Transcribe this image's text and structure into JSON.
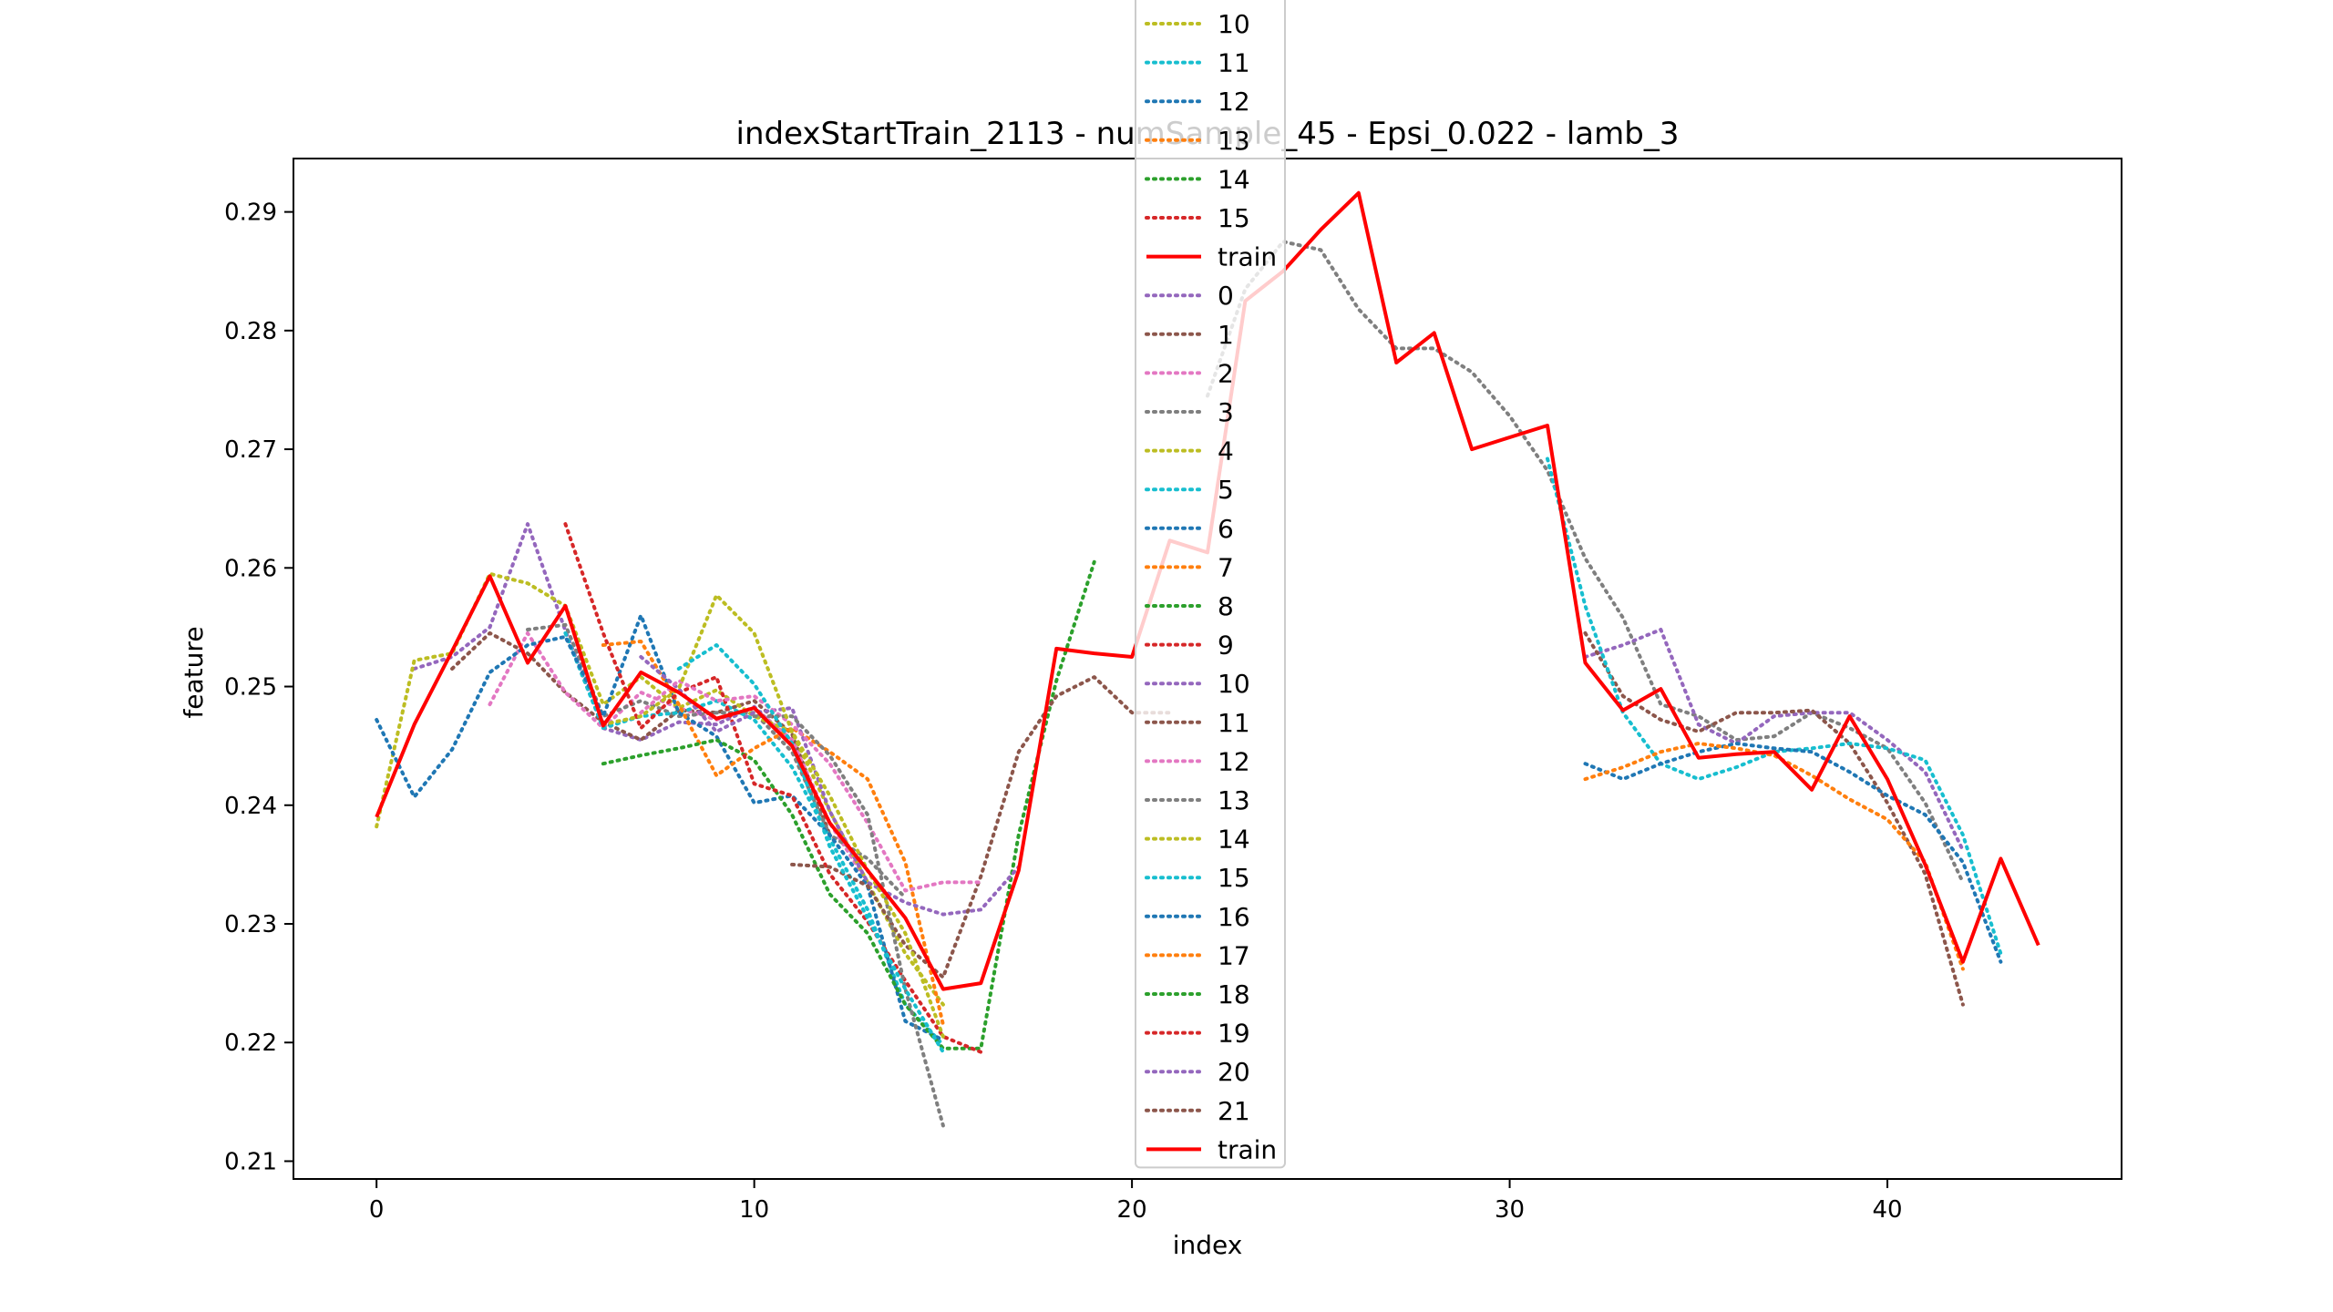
{
  "chart_data": {
    "type": "line",
    "title": "indexStartTrain_2113 - numSample_45 - Epsi_0.022 - lamb_3",
    "xlabel": "index",
    "ylabel": "feature",
    "xlim": [
      -2.2,
      46.2
    ],
    "ylim": [
      0.2085,
      0.2945
    ],
    "x_ticks": [
      0,
      10,
      20,
      30,
      40
    ],
    "y_ticks": [
      0.21,
      0.22,
      0.23,
      0.24,
      0.25,
      0.26,
      0.27,
      0.28,
      0.29
    ],
    "x_tick_labels": [
      "0",
      "10",
      "20",
      "30",
      "40"
    ],
    "y_tick_labels": [
      "0.21",
      "0.22",
      "0.23",
      "0.24",
      "0.25",
      "0.26",
      "0.27",
      "0.28",
      "0.29"
    ],
    "grid": false,
    "legend_placement": "upper-center",
    "legend_entries": [
      {
        "label": "10",
        "color": "#bcbd22",
        "style": "dotted"
      },
      {
        "label": "11",
        "color": "#17becf",
        "style": "dotted"
      },
      {
        "label": "12",
        "color": "#1f77b4",
        "style": "dotted"
      },
      {
        "label": "13",
        "color": "#ff7f0e",
        "style": "dotted"
      },
      {
        "label": "14",
        "color": "#2ca02c",
        "style": "dotted"
      },
      {
        "label": "15",
        "color": "#d62728",
        "style": "dotted"
      },
      {
        "label": "train",
        "color": "#ff0000",
        "style": "solid"
      },
      {
        "label": "0",
        "color": "#9467bd",
        "style": "dotted"
      },
      {
        "label": "1",
        "color": "#8c564b",
        "style": "dotted"
      },
      {
        "label": "2",
        "color": "#e377c2",
        "style": "dotted"
      },
      {
        "label": "3",
        "color": "#7f7f7f",
        "style": "dotted"
      },
      {
        "label": "4",
        "color": "#bcbd22",
        "style": "dotted"
      },
      {
        "label": "5",
        "color": "#17becf",
        "style": "dotted"
      },
      {
        "label": "6",
        "color": "#1f77b4",
        "style": "dotted"
      },
      {
        "label": "7",
        "color": "#ff7f0e",
        "style": "dotted"
      },
      {
        "label": "8",
        "color": "#2ca02c",
        "style": "dotted"
      },
      {
        "label": "9",
        "color": "#d62728",
        "style": "dotted"
      },
      {
        "label": "10",
        "color": "#9467bd",
        "style": "dotted"
      },
      {
        "label": "11",
        "color": "#8c564b",
        "style": "dotted"
      },
      {
        "label": "12",
        "color": "#e377c2",
        "style": "dotted"
      },
      {
        "label": "13",
        "color": "#7f7f7f",
        "style": "dotted"
      },
      {
        "label": "14",
        "color": "#bcbd22",
        "style": "dotted"
      },
      {
        "label": "15",
        "color": "#17becf",
        "style": "dotted"
      },
      {
        "label": "16",
        "color": "#1f77b4",
        "style": "dotted"
      },
      {
        "label": "17",
        "color": "#ff7f0e",
        "style": "dotted"
      },
      {
        "label": "18",
        "color": "#2ca02c",
        "style": "dotted"
      },
      {
        "label": "19",
        "color": "#d62728",
        "style": "dotted"
      },
      {
        "label": "20",
        "color": "#9467bd",
        "style": "dotted"
      },
      {
        "label": "21",
        "color": "#8c564b",
        "style": "dotted"
      },
      {
        "label": "train",
        "color": "#ff0000",
        "style": "solid"
      }
    ],
    "series": [
      {
        "color": "#9467bd",
        "style": "dotted",
        "x": [
          1,
          2,
          3,
          4,
          5,
          6,
          7,
          8,
          9,
          10,
          11
        ],
        "y": [
          0.2515,
          0.2525,
          0.255,
          0.2637,
          0.2547,
          0.2465,
          0.2455,
          0.247,
          0.2468,
          0.2483,
          0.2452
        ]
      },
      {
        "color": "#8c564b",
        "style": "dotted",
        "x": [
          2,
          3,
          4,
          5,
          6,
          7,
          8,
          9,
          10,
          11,
          12
        ],
        "y": [
          0.2515,
          0.2545,
          0.2528,
          0.2495,
          0.247,
          0.2455,
          0.248,
          0.2478,
          0.2488,
          0.246,
          0.2375
        ]
      },
      {
        "color": "#e377c2",
        "style": "dotted",
        "x": [
          3,
          4,
          5,
          6,
          7,
          8,
          9,
          10,
          11,
          12,
          13
        ],
        "y": [
          0.2485,
          0.2545,
          0.2495,
          0.2465,
          0.2495,
          0.2482,
          0.2472,
          0.2482,
          0.2455,
          0.2385,
          0.2335
        ]
      },
      {
        "color": "#7f7f7f",
        "style": "dotted",
        "x": [
          4,
          5,
          6,
          7,
          8,
          9,
          10,
          11,
          12,
          13,
          14
        ],
        "y": [
          0.2548,
          0.2552,
          0.2475,
          0.2488,
          0.2475,
          0.2478,
          0.2478,
          0.2445,
          0.2375,
          0.2355,
          0.2322
        ]
      },
      {
        "color": "#bcbd22",
        "style": "dotted",
        "x": [
          0,
          1,
          2,
          3,
          4,
          5,
          6,
          7,
          8,
          9,
          10,
          11,
          12,
          13,
          14,
          15
        ],
        "y": [
          0.2382,
          0.2522,
          0.2528,
          0.2595,
          0.2587,
          0.2568,
          0.2485,
          0.2508,
          0.2482,
          0.2497,
          0.2475,
          0.2462,
          0.2395,
          0.2335,
          0.2275,
          0.2232
        ]
      },
      {
        "color": "#17becf",
        "style": "dotted",
        "x": [
          5,
          6,
          7,
          8,
          9,
          10,
          11,
          12,
          13,
          14,
          15
        ],
        "y": [
          0.2545,
          0.2465,
          0.2475,
          0.2478,
          0.2488,
          0.2472,
          0.2432,
          0.2372,
          0.2312,
          0.2232,
          0.2198
        ]
      },
      {
        "color": "#1f77b4",
        "style": "dotted",
        "x": [
          0,
          1,
          2,
          3,
          4,
          5,
          6,
          7,
          8,
          9,
          10,
          11,
          12,
          13,
          14,
          15
        ],
        "y": [
          0.2472,
          0.2407,
          0.2447,
          0.2512,
          0.2535,
          0.2542,
          0.2475,
          0.256,
          0.2478,
          0.2458,
          0.2402,
          0.2408,
          0.2375,
          0.2332,
          0.2218,
          0.2202
        ]
      },
      {
        "color": "#ff7f0e",
        "style": "dotted",
        "x": [
          6,
          7,
          8,
          9,
          10,
          11,
          12,
          13,
          14,
          15
        ],
        "y": [
          0.2535,
          0.2538,
          0.2485,
          0.2425,
          0.2448,
          0.2465,
          0.2445,
          0.2422,
          0.2352,
          0.2215
        ]
      },
      {
        "color": "#2ca02c",
        "style": "dotted",
        "x": [
          6,
          7,
          8,
          9,
          10,
          11,
          12,
          13,
          14,
          15,
          16,
          17,
          18,
          19
        ],
        "y": [
          0.2435,
          0.2442,
          0.2448,
          0.2455,
          0.2438,
          0.2392,
          0.2325,
          0.2292,
          0.2232,
          0.2195,
          0.2195,
          0.2375,
          0.2505,
          0.2605
        ]
      },
      {
        "color": "#d62728",
        "style": "dotted",
        "x": [
          5,
          6,
          7,
          8,
          9,
          10,
          11,
          12,
          13,
          14,
          15,
          16
        ],
        "y": [
          0.2637,
          0.2545,
          0.2465,
          0.2495,
          0.2508,
          0.2418,
          0.2408,
          0.2342,
          0.2302,
          0.2252,
          0.2205,
          0.2192
        ]
      },
      {
        "color": "#9467bd",
        "style": "dotted",
        "x": [
          7,
          8,
          9,
          10,
          11,
          12,
          13,
          14,
          15,
          16,
          17
        ],
        "y": [
          0.2525,
          0.2498,
          0.2462,
          0.2478,
          0.2482,
          0.2395,
          0.2335,
          0.2318,
          0.2308,
          0.2312,
          0.2348
        ]
      },
      {
        "color": "#8c564b",
        "style": "dotted",
        "x": [
          11,
          12,
          13,
          14,
          15,
          16,
          17,
          18,
          19,
          20,
          21
        ],
        "y": [
          0.235,
          0.2348,
          0.2332,
          0.2282,
          0.2255,
          0.234,
          0.2445,
          0.2492,
          0.2508,
          0.2478,
          0.2478
        ]
      },
      {
        "color": "#e377c2",
        "style": "dotted",
        "x": [
          7,
          8,
          9,
          10,
          11,
          12,
          13,
          14,
          15,
          16
        ],
        "y": [
          0.2478,
          0.2505,
          0.2488,
          0.2492,
          0.2468,
          0.2435,
          0.2385,
          0.2328,
          0.2335,
          0.2335
        ]
      },
      {
        "color": "#7f7f7f",
        "style": "dotted",
        "x": [
          10,
          11,
          12,
          13,
          14,
          15
        ],
        "y": [
          0.2475,
          0.2475,
          0.2442,
          0.2392,
          0.2245,
          0.213
        ]
      },
      {
        "color": "#bcbd22",
        "style": "dotted",
        "x": [
          6,
          7,
          8,
          9,
          10,
          11,
          12,
          13,
          14,
          15
        ],
        "y": [
          0.2468,
          0.2475,
          0.2498,
          0.2577,
          0.2545,
          0.2462,
          0.2408,
          0.2345,
          0.2292,
          0.2205
        ]
      },
      {
        "color": "#17becf",
        "style": "dotted",
        "x": [
          8,
          9,
          10,
          11,
          12,
          13,
          14,
          15
        ],
        "y": [
          0.2515,
          0.2535,
          0.2502,
          0.2452,
          0.2365,
          0.2305,
          0.2245,
          0.2192
        ]
      },
      {
        "color": "#7f7f7f",
        "style": "dotted",
        "x": [
          22,
          23,
          24,
          25,
          26,
          27,
          28,
          29,
          30,
          31,
          32,
          33,
          34,
          35,
          36,
          37,
          38,
          39,
          40,
          41,
          42
        ],
        "y": [
          0.2745,
          0.2835,
          0.2875,
          0.2868,
          0.2818,
          0.2785,
          0.2785,
          0.2765,
          0.2728,
          0.2682,
          0.2608,
          0.2558,
          0.2485,
          0.2475,
          0.2455,
          0.2458,
          0.2478,
          0.2465,
          0.2448,
          0.2402,
          0.2335
        ]
      },
      {
        "color": "#9467bd",
        "style": "dotted",
        "x": [
          32,
          33,
          34,
          35,
          36,
          37,
          38,
          39,
          40,
          41,
          42
        ],
        "y": [
          0.2525,
          0.2535,
          0.2548,
          0.2468,
          0.2452,
          0.2475,
          0.2478,
          0.2478,
          0.2455,
          0.2428,
          0.2362
        ]
      },
      {
        "color": "#8c564b",
        "style": "dotted",
        "x": [
          32,
          33,
          34,
          35,
          36,
          37,
          38,
          39,
          40,
          41,
          42
        ],
        "y": [
          0.2545,
          0.2492,
          0.2472,
          0.2462,
          0.2478,
          0.2478,
          0.248,
          0.2452,
          0.2402,
          0.2342,
          0.2232
        ]
      },
      {
        "color": "#17becf",
        "style": "dotted",
        "x": [
          31,
          32,
          33,
          34,
          35,
          36,
          37,
          38,
          39,
          40,
          41,
          42,
          43
        ],
        "y": [
          0.2692,
          0.2568,
          0.2478,
          0.2435,
          0.2422,
          0.2432,
          0.2445,
          0.2448,
          0.2452,
          0.2448,
          0.2438,
          0.2375,
          0.2275
        ]
      },
      {
        "color": "#1f77b4",
        "style": "dotted",
        "x": [
          32,
          33,
          34,
          35,
          36,
          37,
          38,
          39,
          40,
          41,
          42,
          43
        ],
        "y": [
          0.2435,
          0.2422,
          0.2435,
          0.2445,
          0.2452,
          0.2448,
          0.2445,
          0.2428,
          0.2408,
          0.2392,
          0.2352,
          0.2268
        ]
      },
      {
        "color": "#ff7f0e",
        "style": "dotted",
        "x": [
          32,
          33,
          34,
          35,
          36,
          37,
          38,
          39,
          40,
          41,
          42
        ],
        "y": [
          0.2422,
          0.2432,
          0.2445,
          0.2452,
          0.2448,
          0.2442,
          0.2425,
          0.2405,
          0.2388,
          0.2352,
          0.2262
        ]
      },
      {
        "name": "train",
        "color": "#ff0000",
        "style": "solid",
        "x": [
          0,
          1,
          2,
          3,
          4,
          5,
          6,
          7,
          8,
          9,
          10,
          11,
          12,
          13,
          14,
          15,
          16,
          17,
          18,
          19,
          20,
          21,
          22,
          23,
          24,
          25,
          26,
          27,
          28,
          29,
          30,
          31,
          32,
          33,
          34,
          35,
          36,
          37,
          38,
          39,
          40,
          41,
          42,
          43,
          44
        ],
        "y": [
          0.239,
          0.2468,
          0.253,
          0.2593,
          0.252,
          0.2568,
          0.2467,
          0.2512,
          0.2495,
          0.2473,
          0.2482,
          0.245,
          0.2385,
          0.2345,
          0.2305,
          0.2245,
          0.225,
          0.2345,
          0.2532,
          0.2528,
          0.2525,
          0.2623,
          0.2613,
          0.2825,
          0.285,
          0.2885,
          0.2916,
          0.2773,
          0.2798,
          0.27,
          0.271,
          0.272,
          0.252,
          0.248,
          0.2498,
          0.244,
          0.2443,
          0.2445,
          0.2413,
          0.2475,
          0.2422,
          0.235,
          0.2268,
          0.2355,
          0.2282
        ]
      }
    ]
  }
}
